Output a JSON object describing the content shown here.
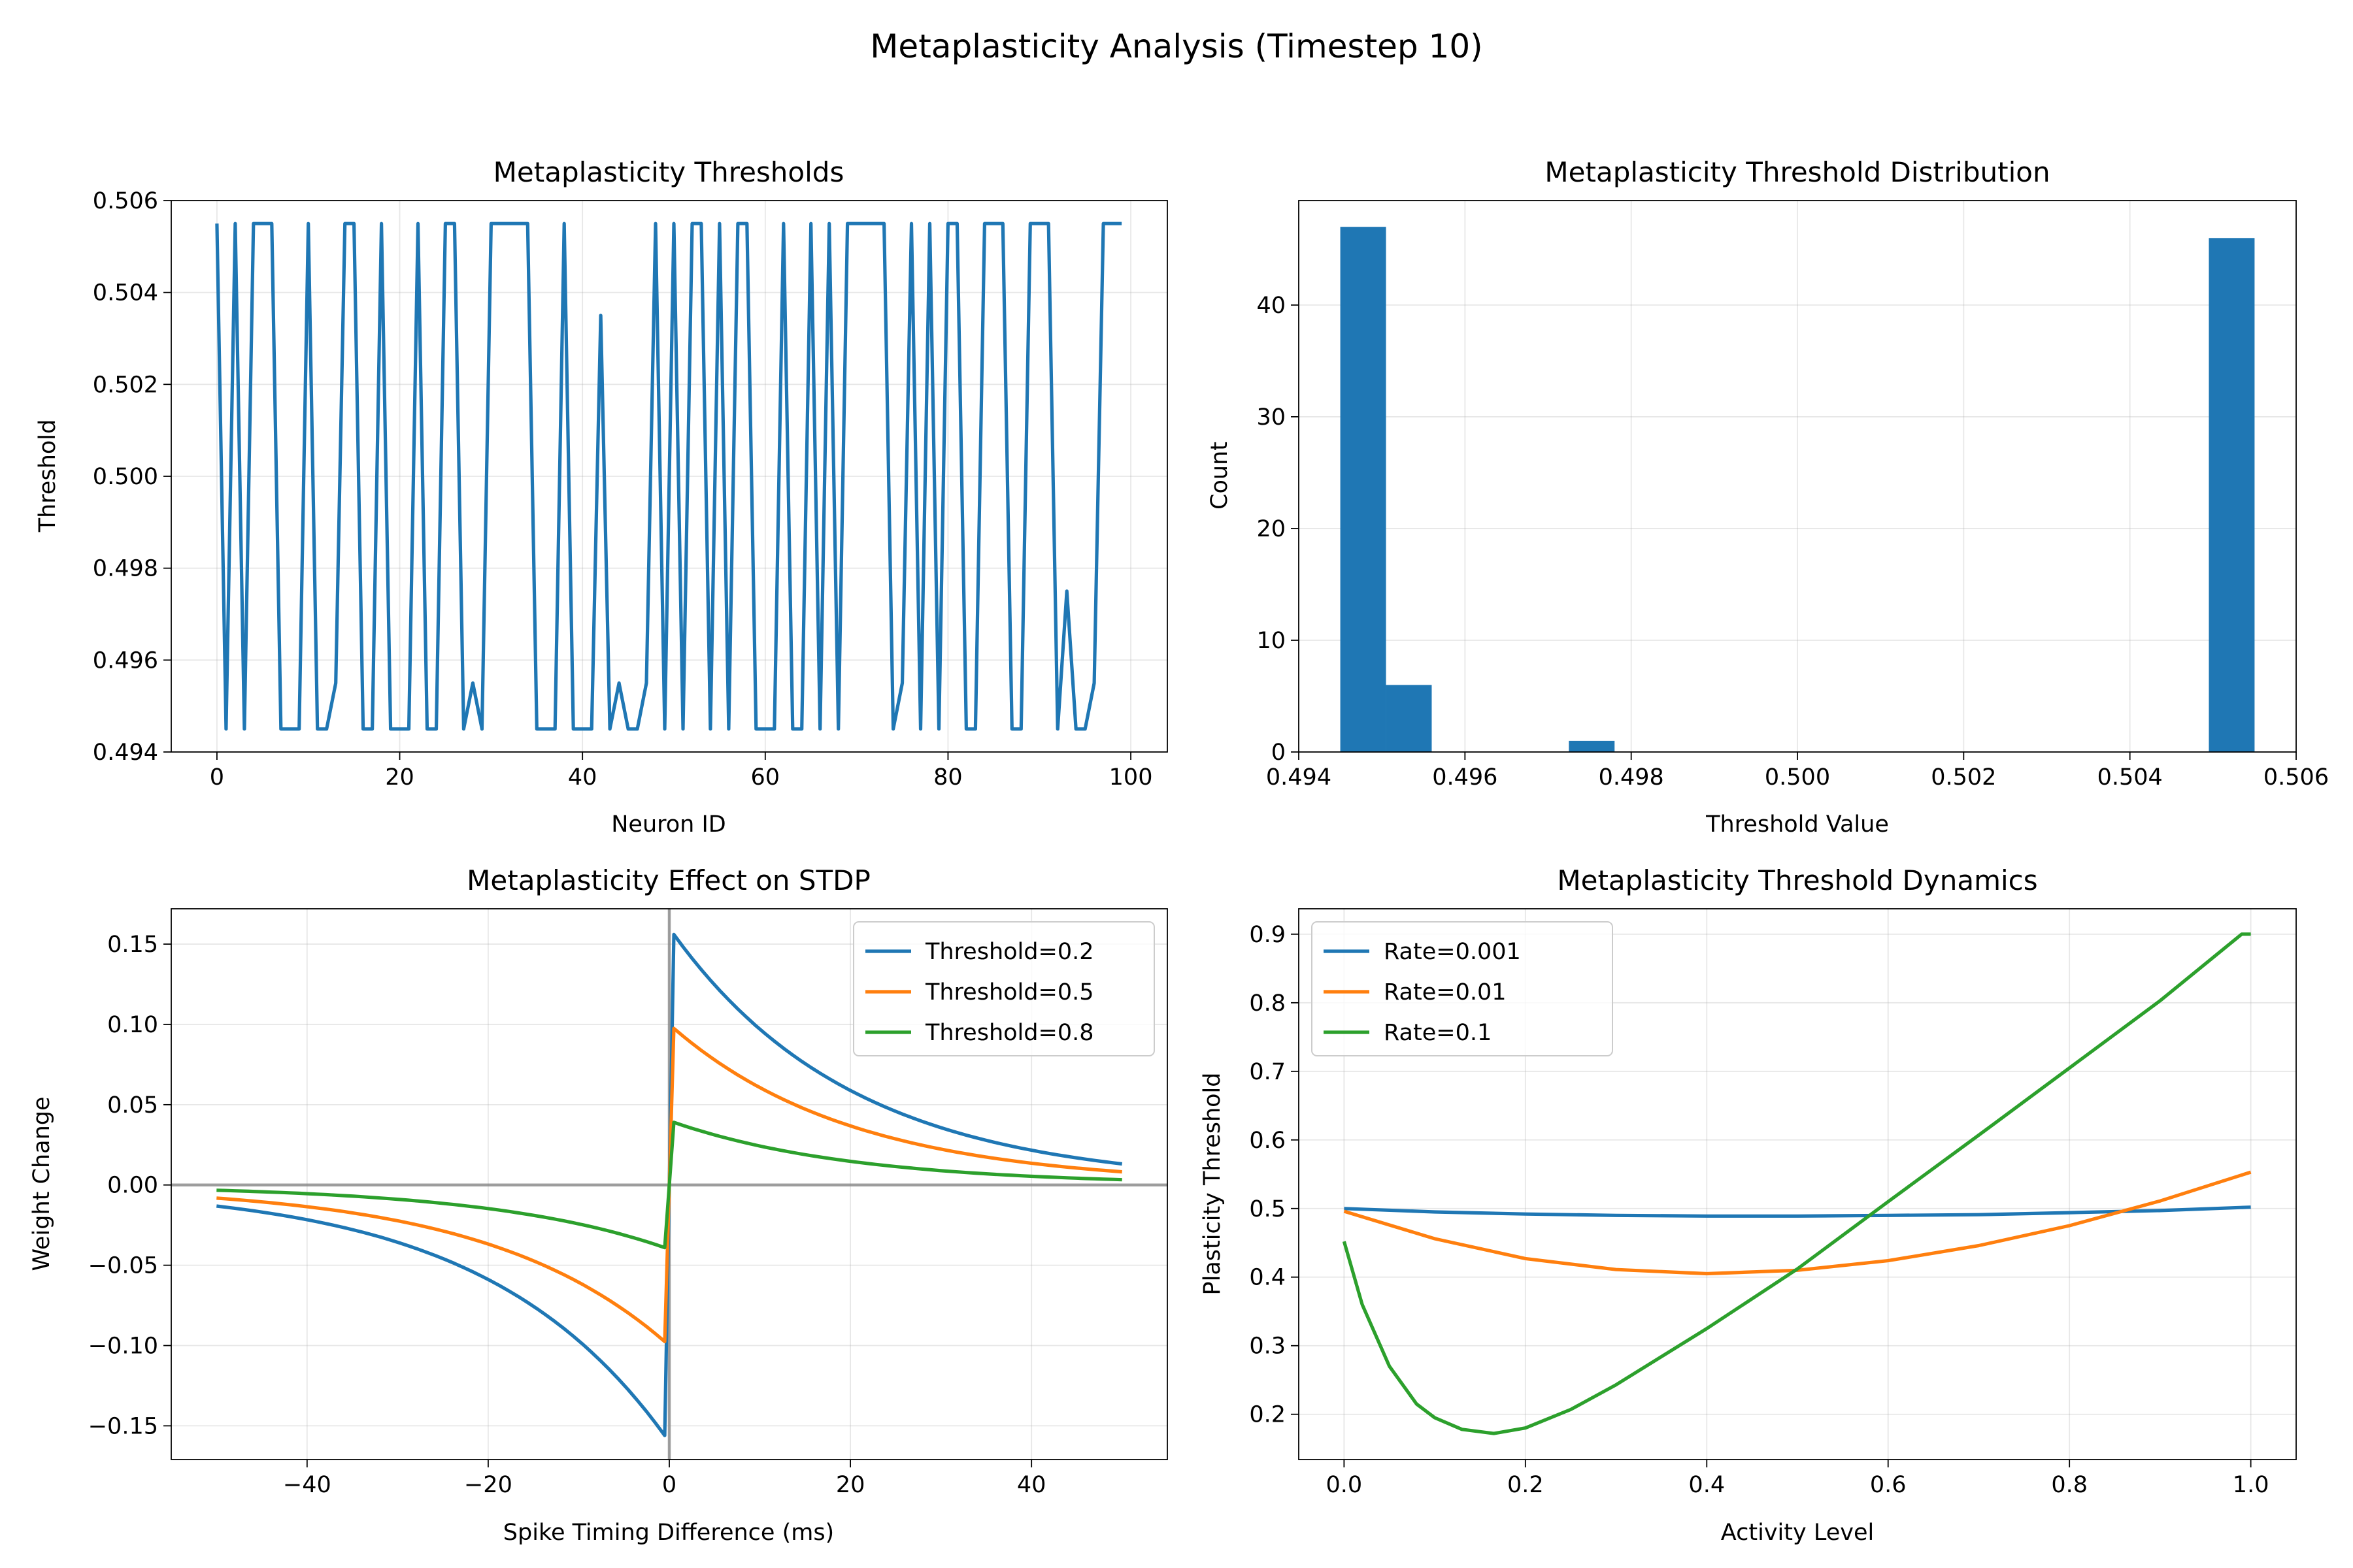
{
  "figure": {
    "suptitle": "Metaplasticity Analysis (Timestep 10)"
  },
  "colors": {
    "c0": "#1f77b4",
    "c1": "#ff7f0e",
    "c2": "#2ca02c",
    "ref": "#808080"
  },
  "chart_data": [
    {
      "id": "thresholds",
      "type": "line",
      "title": "Metaplasticity Thresholds",
      "xlabel": "Neuron ID",
      "ylabel": "Threshold",
      "xlim": [
        -5,
        104
      ],
      "ylim": [
        0.494,
        0.506
      ],
      "xticks": [
        0,
        20,
        40,
        60,
        80,
        100
      ],
      "yticks": [
        0.494,
        0.496,
        0.498,
        0.5,
        0.502,
        0.504,
        0.506
      ],
      "xtick_labels": [
        "0",
        "20",
        "40",
        "60",
        "80",
        "100"
      ],
      "ytick_labels": [
        "0.494",
        "0.496",
        "0.498",
        "0.500",
        "0.502",
        "0.504",
        "0.506"
      ],
      "grid": true,
      "series": [
        {
          "color": "#1f77b4",
          "x": [
            0,
            1,
            2,
            3,
            4,
            5,
            6,
            7,
            8,
            9,
            10,
            11,
            12,
            13,
            14,
            15,
            16,
            17,
            18,
            19,
            20,
            21,
            22,
            23,
            24,
            25,
            26,
            27,
            28,
            29,
            30,
            31,
            32,
            33,
            34,
            35,
            36,
            37,
            38,
            39,
            40,
            41,
            42,
            43,
            44,
            45,
            46,
            47,
            48,
            49,
            50,
            51,
            52,
            53,
            54,
            55,
            56,
            57,
            58,
            59,
            60,
            61,
            62,
            63,
            64,
            65,
            66,
            67,
            68,
            69,
            70,
            71,
            72,
            73,
            74,
            75,
            76,
            77,
            78,
            79,
            80,
            81,
            82,
            83,
            84,
            85,
            86,
            87,
            88,
            89,
            90,
            91,
            92,
            93,
            94,
            95,
            96,
            97,
            98,
            99
          ],
          "y": [
            0.5055,
            0.4945,
            0.5055,
            0.4945,
            0.5055,
            0.5055,
            0.5055,
            0.4945,
            0.4945,
            0.4945,
            0.5055,
            0.4945,
            0.4945,
            0.4955,
            0.5055,
            0.5055,
            0.4945,
            0.4945,
            0.5055,
            0.4945,
            0.4945,
            0.4945,
            0.5055,
            0.4945,
            0.4945,
            0.5055,
            0.5055,
            0.4945,
            0.4955,
            0.4945,
            0.5055,
            0.5055,
            0.5055,
            0.5055,
            0.5055,
            0.4945,
            0.4945,
            0.4945,
            0.5055,
            0.4945,
            0.4945,
            0.4945,
            0.5035,
            0.4945,
            0.4955,
            0.4945,
            0.4945,
            0.4955,
            0.5055,
            0.4945,
            0.5055,
            0.4945,
            0.5055,
            0.5055,
            0.4945,
            0.5055,
            0.4945,
            0.5055,
            0.5055,
            0.4945,
            0.4945,
            0.4945,
            0.5055,
            0.4945,
            0.4945,
            0.5055,
            0.4945,
            0.5055,
            0.4945,
            0.5055,
            0.5055,
            0.5055,
            0.5055,
            0.5055,
            0.4945,
            0.4955,
            0.5055,
            0.4945,
            0.5055,
            0.4945,
            0.5055,
            0.5055,
            0.4945,
            0.4945,
            0.5055,
            0.5055,
            0.5055,
            0.4945,
            0.4945,
            0.5055,
            0.5055,
            0.5055,
            0.4945,
            0.4975,
            0.4945,
            0.4945,
            0.4955,
            0.5055,
            0.5055,
            0.5055
          ]
        }
      ]
    },
    {
      "id": "distribution",
      "type": "bar",
      "title": "Metaplasticity Threshold Distribution",
      "xlabel": "Threshold Value",
      "ylabel": "Count",
      "xlim": [
        0.494,
        0.506
      ],
      "ylim": [
        0,
        49.35
      ],
      "xticks": [
        0.494,
        0.496,
        0.498,
        0.5,
        0.502,
        0.504,
        0.506
      ],
      "yticks": [
        0,
        10,
        20,
        30,
        40
      ],
      "xtick_labels": [
        "0.494",
        "0.496",
        "0.498",
        "0.500",
        "0.502",
        "0.504",
        "0.506"
      ],
      "ytick_labels": [
        "0",
        "10",
        "20",
        "30",
        "40"
      ],
      "grid": true,
      "bins": {
        "start": 0.4945,
        "width": 0.00055
      },
      "values": [
        47,
        6,
        0,
        0,
        0,
        1,
        0,
        0,
        0,
        0,
        0,
        0,
        0,
        0,
        0,
        0,
        0,
        0,
        0,
        46
      ],
      "color": "#1f77b4"
    },
    {
      "id": "stdp",
      "type": "line",
      "title": "Metaplasticity Effect on STDP",
      "xlabel": "Spike Timing Difference (ms)",
      "ylabel": "Weight Change",
      "xlim": [
        -55,
        55
      ],
      "ylim": [
        -0.171,
        0.172
      ],
      "xticks": [
        -40,
        -20,
        0,
        20,
        40
      ],
      "yticks": [
        -0.15,
        -0.1,
        -0.05,
        0.0,
        0.05,
        0.1,
        0.15
      ],
      "xtick_labels": [
        "−40",
        "−20",
        "0",
        "20",
        "40"
      ],
      "ytick_labels": [
        "−0.15",
        "−0.10",
        "−0.05",
        "0.00",
        "0.05",
        "0.10",
        "0.15"
      ],
      "grid": true,
      "legend": "top-right",
      "reference_lines": {
        "h": 0,
        "v": 0
      },
      "tau_ms": 20,
      "series": [
        {
          "name": "Threshold=0.2",
          "color": "#1f77b4",
          "amplitude": 0.16
        },
        {
          "name": "Threshold=0.5",
          "color": "#ff7f0e",
          "amplitude": 0.1
        },
        {
          "name": "Threshold=0.8",
          "color": "#2ca02c",
          "amplitude": 0.04
        }
      ]
    },
    {
      "id": "dynamics",
      "type": "line",
      "title": "Metaplasticity Threshold Dynamics",
      "xlabel": "Activity Level",
      "ylabel": "Plasticity Threshold",
      "xlim": [
        -0.05,
        1.05
      ],
      "ylim": [
        0.134,
        0.937
      ],
      "xticks": [
        0.0,
        0.2,
        0.4,
        0.6,
        0.8,
        1.0
      ],
      "yticks": [
        0.2,
        0.3,
        0.4,
        0.5,
        0.6,
        0.7,
        0.8,
        0.9
      ],
      "xtick_labels": [
        "0.0",
        "0.2",
        "0.4",
        "0.6",
        "0.8",
        "1.0"
      ],
      "ytick_labels": [
        "0.2",
        "0.3",
        "0.4",
        "0.5",
        "0.6",
        "0.7",
        "0.8",
        "0.9"
      ],
      "grid": true,
      "legend": "top-left",
      "series": [
        {
          "name": "Rate=0.001",
          "color": "#1f77b4",
          "x": [
            0.0,
            0.1,
            0.2,
            0.3,
            0.4,
            0.5,
            0.6,
            0.7,
            0.8,
            0.9,
            1.0
          ],
          "y": [
            0.5,
            0.495,
            0.492,
            0.49,
            0.489,
            0.489,
            0.49,
            0.491,
            0.494,
            0.497,
            0.502
          ]
        },
        {
          "name": "Rate=0.01",
          "color": "#ff7f0e",
          "x": [
            0.0,
            0.1,
            0.2,
            0.3,
            0.4,
            0.5,
            0.6,
            0.7,
            0.8,
            0.9,
            1.0
          ],
          "y": [
            0.496,
            0.456,
            0.427,
            0.411,
            0.405,
            0.41,
            0.424,
            0.446,
            0.475,
            0.511,
            0.553
          ]
        },
        {
          "name": "Rate=0.1",
          "color": "#2ca02c",
          "x": [
            0.0,
            0.02,
            0.05,
            0.08,
            0.1,
            0.13,
            0.165,
            0.2,
            0.25,
            0.3,
            0.4,
            0.5,
            0.6,
            0.7,
            0.8,
            0.9,
            0.99,
            1.0
          ],
          "y": [
            0.452,
            0.36,
            0.27,
            0.215,
            0.195,
            0.178,
            0.172,
            0.18,
            0.207,
            0.243,
            0.325,
            0.412,
            0.51,
            0.607,
            0.705,
            0.803,
            0.9,
            0.9
          ]
        }
      ]
    }
  ]
}
